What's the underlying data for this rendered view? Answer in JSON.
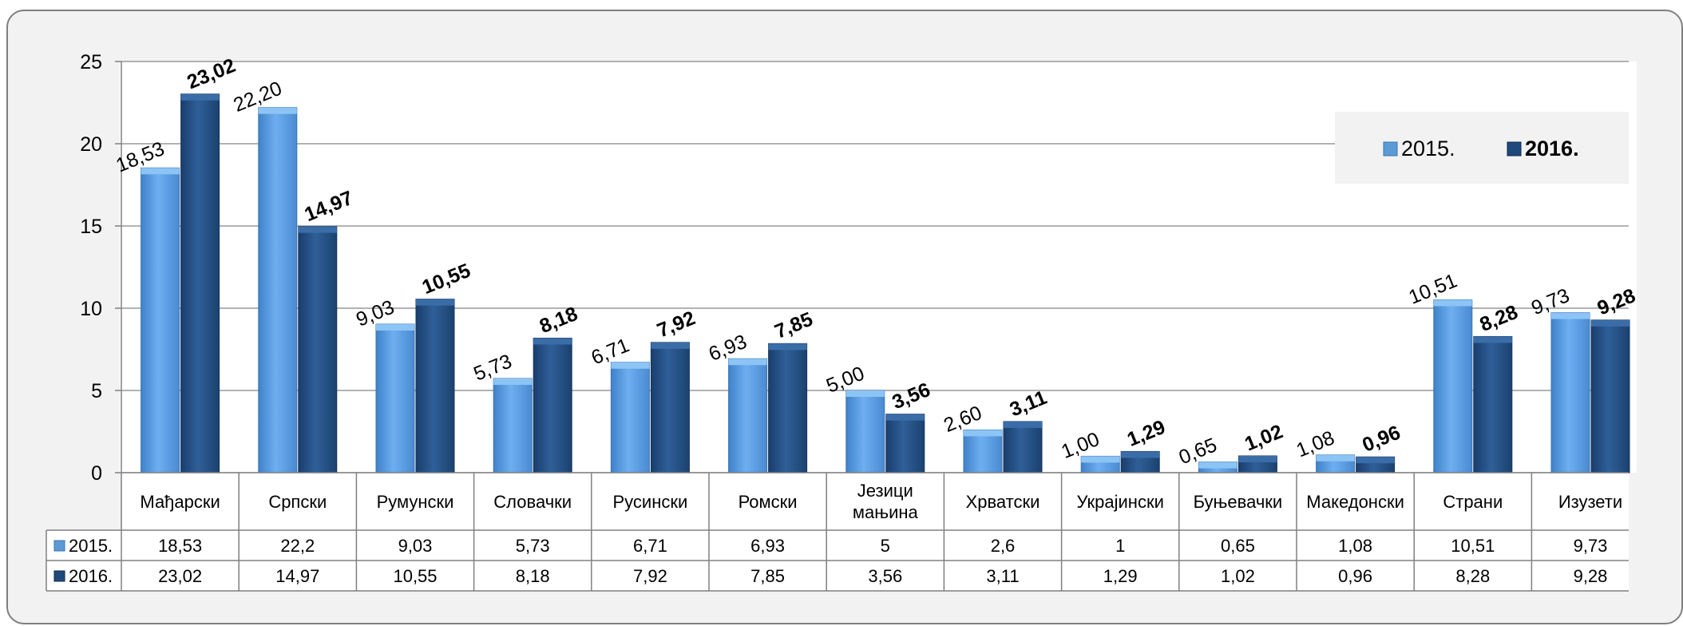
{
  "chart_data": {
    "type": "bar",
    "categories": [
      "Мађарски",
      "Српски",
      "Румунски",
      "Словачки",
      "Русински",
      "Ромски",
      "Језици мањина",
      "Хрватски",
      "Украјински",
      "Буњевачки",
      "Македонски",
      "Страни",
      "Изузети"
    ],
    "series": [
      {
        "name": "2015.",
        "color": "#5b9bd5",
        "values": [
          18.53,
          22.2,
          9.03,
          5.73,
          6.71,
          6.93,
          5.0,
          2.6,
          1.0,
          0.65,
          1.08,
          10.51,
          9.73
        ],
        "labels": [
          "18,53",
          "22,20",
          "9,03",
          "5,73",
          "6,71",
          "6,93",
          "5,00",
          "2,60",
          "1,00",
          "0,65",
          "1,08",
          "10,51",
          "9,73"
        ],
        "table": [
          "18,53",
          "22,2",
          "9,03",
          "5,73",
          "6,71",
          "6,93",
          "5",
          "2,6",
          "1",
          "0,65",
          "1,08",
          "10,51",
          "9,73"
        ]
      },
      {
        "name": "2016.",
        "color": "#1f497d",
        "values": [
          23.02,
          14.97,
          10.55,
          8.18,
          7.92,
          7.85,
          3.56,
          3.11,
          1.29,
          1.02,
          0.96,
          8.28,
          9.28
        ],
        "labels": [
          "23,02",
          "14,97",
          "10,55",
          "8,18",
          "7,92",
          "7,85",
          "3,56",
          "3,11",
          "1,29",
          "1,02",
          "0,96",
          "8,28",
          "9,28"
        ],
        "table": [
          "23,02",
          "14,97",
          "10,55",
          "8,18",
          "7,92",
          "7,85",
          "3,56",
          "3,11",
          "1,29",
          "1,02",
          "0,96",
          "8,28",
          "9,28"
        ]
      }
    ],
    "ylim": [
      0,
      25
    ],
    "yticks": [
      0,
      5,
      10,
      15,
      20,
      25
    ],
    "grid": true,
    "legend": "top-right",
    "data_table": true,
    "title": "",
    "xlabel": "",
    "ylabel": ""
  }
}
